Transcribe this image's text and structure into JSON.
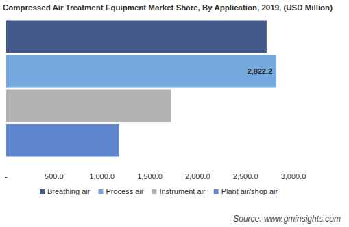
{
  "chart_data": {
    "type": "bar",
    "orientation": "horizontal",
    "title": "Compressed Air Treatment Equipment Market Share, By Application, 2019, (USD Million)",
    "categories": [
      "Breathing air",
      "Process air",
      "Instrument air",
      "Plant air/shop air"
    ],
    "values": [
      2720,
      2822.2,
      1720,
      1180
    ],
    "colors": [
      "#42598a",
      "#73a9dc",
      "#b2b2b2",
      "#5e87cf"
    ],
    "data_labels": true,
    "value_labels": [
      null,
      "2,822.2",
      null,
      null
    ],
    "xlim": [
      0,
      3000
    ],
    "xticks": [
      {
        "value": 0,
        "label": "-"
      },
      {
        "value": 500,
        "label": "500.0"
      },
      {
        "value": 1000,
        "label": "1,000.0"
      },
      {
        "value": 1500,
        "label": "1,500.0"
      },
      {
        "value": 2000,
        "label": "2,000.0"
      },
      {
        "value": 2500,
        "label": "2,500.0"
      },
      {
        "value": 3000,
        "label": "3,000.0"
      }
    ],
    "grid": false,
    "tick_labels": "x",
    "legend": "bottom",
    "source": "Source: www.gminsights.com"
  }
}
